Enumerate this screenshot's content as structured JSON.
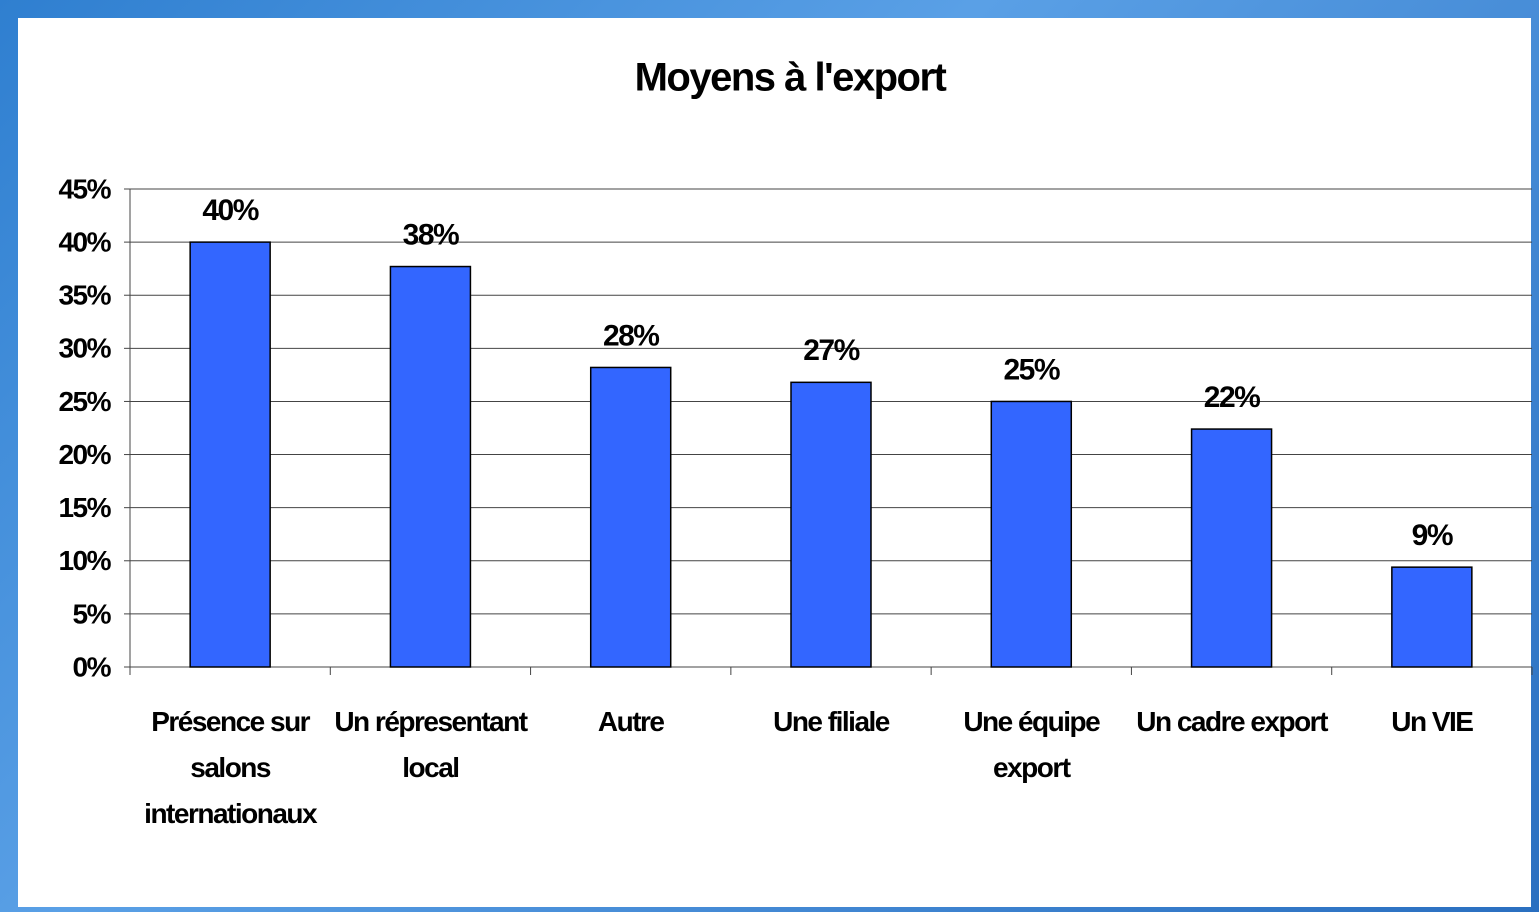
{
  "chart_data": {
    "type": "bar",
    "title": "Moyens à l'export",
    "categories": [
      "Présence sur salons internationaux",
      "Un répresentant local",
      "Autre",
      "Une filiale",
      "Une équipe export",
      "Un cadre export",
      "Un VIE"
    ],
    "values": [
      40,
      37.7,
      28.2,
      26.8,
      25,
      22.4,
      9.4
    ],
    "value_labels": [
      "40%",
      "38%",
      "28%",
      "27%",
      "25%",
      "22%",
      "9%"
    ],
    "color": "#3366ff",
    "ylim": [
      0,
      45
    ],
    "yticks": [
      {
        "value": 0,
        "label": "0%"
      },
      {
        "value": 5,
        "label": "5%"
      },
      {
        "value": 10,
        "label": "10%"
      },
      {
        "value": 15,
        "label": "15%"
      },
      {
        "value": 20,
        "label": "20%"
      },
      {
        "value": 25,
        "label": "25%"
      },
      {
        "value": 30,
        "label": "30%"
      },
      {
        "value": 35,
        "label": "35%"
      },
      {
        "value": 40,
        "label": "40%"
      },
      {
        "value": 45,
        "label": "45%"
      }
    ],
    "grid": true
  }
}
